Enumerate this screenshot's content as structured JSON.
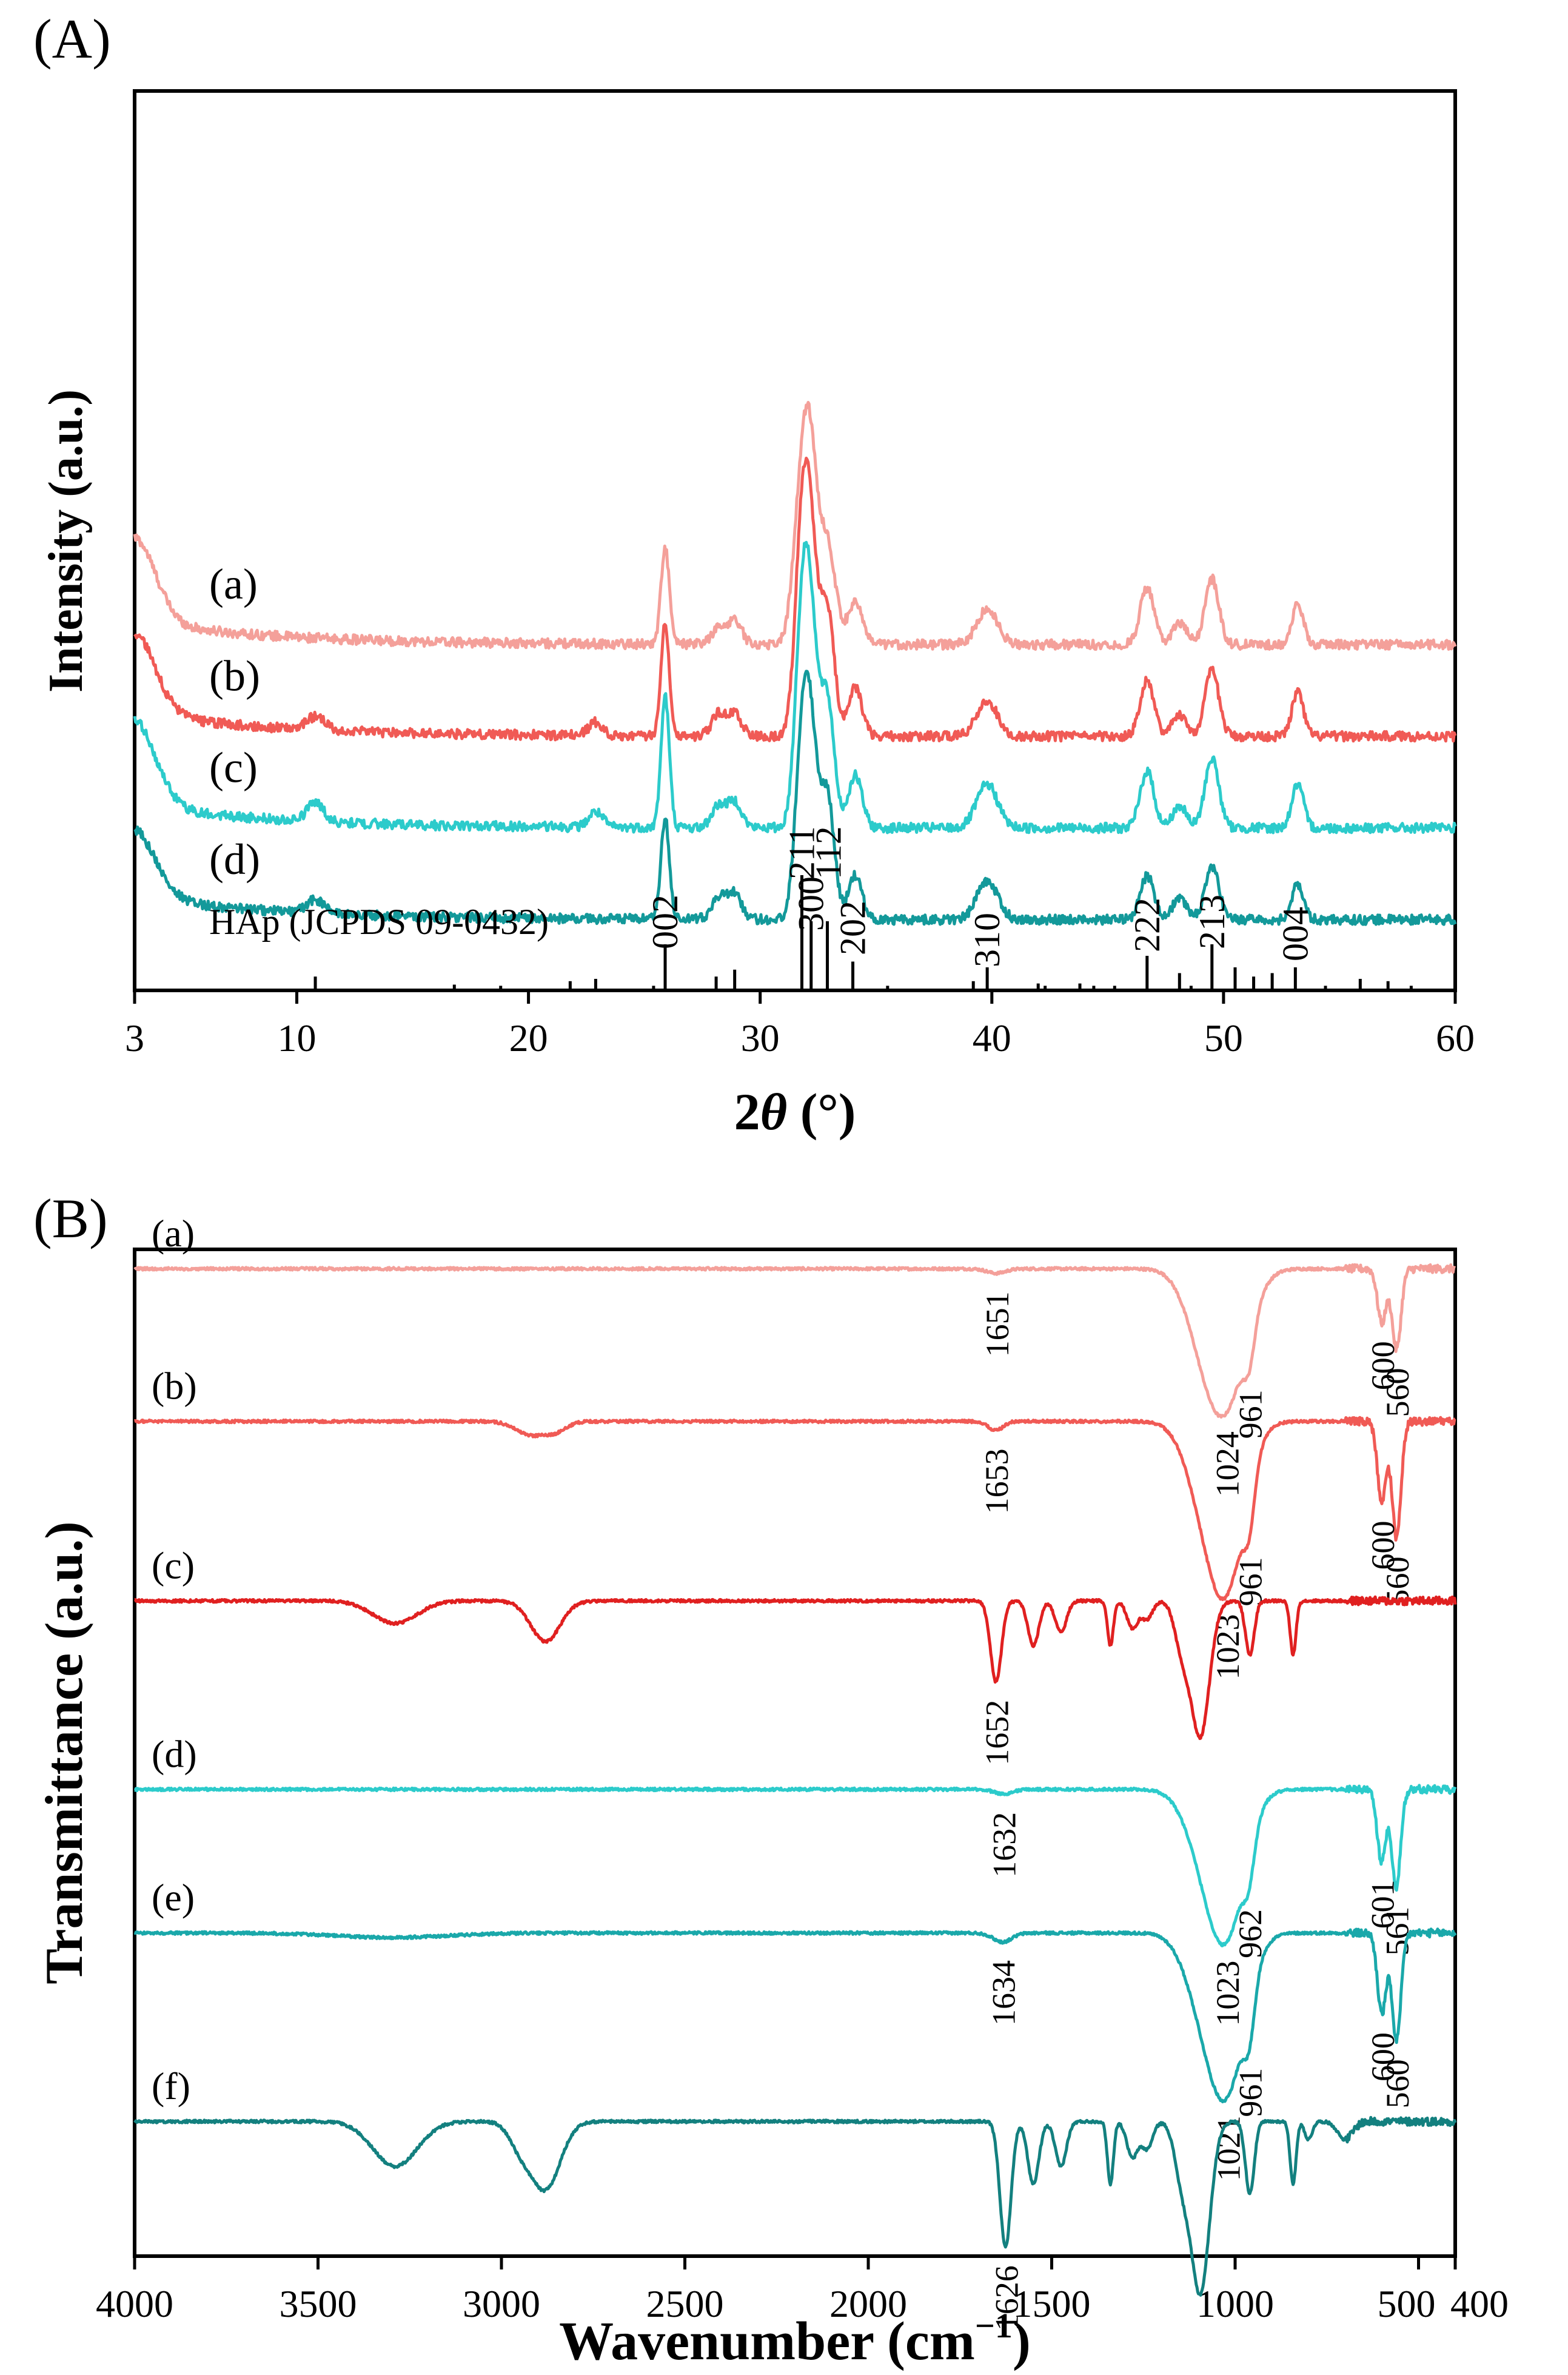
{
  "chart_data": [
    {
      "panel_label": "(A)",
      "type": "line",
      "xlabel": "2θ (°)",
      "xlabel_var": "2",
      "xlabel_italic": "θ",
      "xlabel_unit": " (°)",
      "ylabel": "Intensity (a.u.)",
      "xlim": [
        3,
        60
      ],
      "x_ticks": [
        3,
        10,
        20,
        30,
        40,
        50,
        60
      ],
      "x_tick_labels": [
        "3",
        "10",
        "20",
        "30",
        "40",
        "50",
        "60"
      ],
      "y_ticks": "none",
      "grid": false,
      "series": [
        {
          "name": "(a)",
          "color": "#f4a09a",
          "offset": 7.6,
          "peaks": [
            [
              3,
              1.9,
              0.9
            ],
            [
              25.9,
              2.2,
              0.18
            ],
            [
              28.2,
              0.35,
              0.3
            ],
            [
              28.9,
              0.55,
              0.3
            ],
            [
              31.8,
              3.5,
              0.35
            ],
            [
              32.2,
              3.0,
              0.3
            ],
            [
              32.9,
              2.3,
              0.35
            ],
            [
              34.1,
              1.0,
              0.3
            ],
            [
              39.8,
              0.8,
              0.45
            ],
            [
              46.7,
              1.3,
              0.3
            ],
            [
              48.1,
              0.5,
              0.3
            ],
            [
              49.5,
              1.5,
              0.3
            ],
            [
              53.2,
              0.9,
              0.25
            ]
          ]
        },
        {
          "name": "(b)",
          "color": "#f05a55",
          "offset": 5.5,
          "peaks": [
            [
              3,
              1.8,
              0.9
            ],
            [
              10.8,
              0.3,
              0.4
            ],
            [
              22.9,
              0.3,
              0.3
            ],
            [
              25.9,
              2.6,
              0.18
            ],
            [
              28.2,
              0.5,
              0.3
            ],
            [
              28.9,
              0.5,
              0.3
            ],
            [
              31.8,
              4.3,
              0.3
            ],
            [
              32.2,
              3.6,
              0.3
            ],
            [
              32.9,
              2.9,
              0.3
            ],
            [
              34.1,
              1.1,
              0.3
            ],
            [
              39.8,
              0.8,
              0.45
            ],
            [
              46.7,
              1.3,
              0.3
            ],
            [
              48.1,
              0.5,
              0.3
            ],
            [
              49.5,
              1.5,
              0.3
            ],
            [
              53.2,
              1.0,
              0.25
            ]
          ]
        },
        {
          "name": "(c)",
          "color": "#2ccbcb",
          "offset": 3.4,
          "peaks": [
            [
              3,
              1.9,
              0.9
            ],
            [
              10.8,
              0.45,
              0.35
            ],
            [
              22.9,
              0.35,
              0.3
            ],
            [
              25.9,
              3.0,
              0.18
            ],
            [
              28.2,
              0.5,
              0.3
            ],
            [
              28.9,
              0.6,
              0.3
            ],
            [
              31.8,
              4.3,
              0.3
            ],
            [
              32.2,
              3.8,
              0.3
            ],
            [
              32.9,
              2.9,
              0.3
            ],
            [
              34.1,
              1.2,
              0.3
            ],
            [
              39.8,
              1.0,
              0.45
            ],
            [
              46.7,
              1.3,
              0.3
            ],
            [
              48.1,
              0.5,
              0.3
            ],
            [
              49.5,
              1.6,
              0.3
            ],
            [
              53.2,
              1.0,
              0.25
            ]
          ]
        },
        {
          "name": "(d)",
          "color": "#13999a",
          "offset": 1.3,
          "peaks": [
            [
              3,
              1.5,
              0.9
            ],
            [
              10.8,
              0.3,
              0.4
            ],
            [
              25.9,
              2.3,
              0.18
            ],
            [
              28.2,
              0.5,
              0.3
            ],
            [
              28.9,
              0.6,
              0.3
            ],
            [
              31.8,
              3.6,
              0.3
            ],
            [
              32.2,
              3.5,
              0.3
            ],
            [
              32.9,
              2.8,
              0.3
            ],
            [
              34.1,
              1.0,
              0.3
            ],
            [
              39.8,
              0.9,
              0.45
            ],
            [
              46.7,
              1.0,
              0.3
            ],
            [
              48.1,
              0.5,
              0.3
            ],
            [
              49.5,
              1.2,
              0.3
            ],
            [
              53.2,
              0.8,
              0.25
            ]
          ]
        }
      ],
      "reference": {
        "name": "HAp (JCPDS 09-0432)",
        "lines": [
          {
            "x": 10.8,
            "h": 0.12
          },
          {
            "x": 16.8,
            "h": 0.05
          },
          {
            "x": 18.8,
            "h": 0.04
          },
          {
            "x": 21.8,
            "h": 0.08
          },
          {
            "x": 22.9,
            "h": 0.1
          },
          {
            "x": 25.4,
            "h": 0.04
          },
          {
            "x": 25.9,
            "h": 0.4,
            "label": "002"
          },
          {
            "x": 28.1,
            "h": 0.12
          },
          {
            "x": 28.9,
            "h": 0.18
          },
          {
            "x": 31.8,
            "h": 1.0,
            "label": "211"
          },
          {
            "x": 32.2,
            "h": 0.6,
            "label": "112"
          },
          {
            "x": 32.9,
            "h": 0.6,
            "label": "300"
          },
          {
            "x": 34.0,
            "h": 0.25,
            "label": "202"
          },
          {
            "x": 35.5,
            "h": 0.04
          },
          {
            "x": 39.2,
            "h": 0.08
          },
          {
            "x": 39.8,
            "h": 0.2,
            "label": "310"
          },
          {
            "x": 42.0,
            "h": 0.06
          },
          {
            "x": 42.3,
            "h": 0.04
          },
          {
            "x": 43.8,
            "h": 0.06
          },
          {
            "x": 44.4,
            "h": 0.04
          },
          {
            "x": 45.3,
            "h": 0.04
          },
          {
            "x": 46.7,
            "h": 0.3,
            "label": "222"
          },
          {
            "x": 48.1,
            "h": 0.15
          },
          {
            "x": 48.6,
            "h": 0.04
          },
          {
            "x": 49.5,
            "h": 0.4,
            "label": "213"
          },
          {
            "x": 50.5,
            "h": 0.2
          },
          {
            "x": 51.3,
            "h": 0.12
          },
          {
            "x": 52.1,
            "h": 0.15
          },
          {
            "x": 53.1,
            "h": 0.2,
            "label": "004"
          },
          {
            "x": 54.4,
            "h": 0.04
          },
          {
            "x": 55.9,
            "h": 0.1
          },
          {
            "x": 57.1,
            "h": 0.08
          },
          {
            "x": 58.1,
            "h": 0.04
          }
        ],
        "labels": [
          "002",
          "211",
          "112",
          "300",
          "202",
          "310",
          "222",
          "213",
          "004"
        ]
      }
    },
    {
      "panel_label": "(B)",
      "type": "line",
      "xlabel": "Wavenumber (cm−1)",
      "xlabel_main": "Wavenumber (cm",
      "xlabel_sup": "−1",
      "xlabel_close": ")",
      "ylabel": "Transmittance (a.u.)",
      "xlim": [
        4000,
        400
      ],
      "x_ticks": [
        4000,
        3500,
        3000,
        2500,
        2000,
        1500,
        1000,
        500,
        400
      ],
      "x_tick_labels": [
        "4000",
        "3500",
        "3000",
        "2500",
        "2000",
        "1500",
        "1000",
        "500",
        "400"
      ],
      "grid": false,
      "series": [
        {
          "name": "(a)",
          "color": "#f4a09a",
          "baseline": 11.0,
          "bands": [
            [
              1024,
              1.4,
              55
            ],
            [
              961,
              0.4,
              15
            ],
            [
              1090,
              0.5,
              50
            ],
            [
              600,
              0.6,
              12
            ],
            [
              560,
              0.9,
              12
            ],
            [
              1651,
              0.05,
              25
            ]
          ],
          "annotations": [
            {
              "x": 1651,
              "text": "1651"
            },
            {
              "x": 1024,
              "text": "1024"
            },
            {
              "x": 961,
              "text": "961"
            },
            {
              "x": 600,
              "text": "600"
            },
            {
              "x": 560,
              "text": "560"
            }
          ]
        },
        {
          "name": "(b)",
          "color": "#f05a55",
          "baseline": 9.3,
          "bands": [
            [
              1023,
              1.7,
              50
            ],
            [
              961,
              0.5,
              15
            ],
            [
              1090,
              0.6,
              50
            ],
            [
              600,
              0.9,
              12
            ],
            [
              560,
              1.3,
              12
            ],
            [
              1653,
              0.1,
              20
            ],
            [
              2920,
              0.15,
              40
            ],
            [
              2850,
              0.1,
              30
            ]
          ],
          "annotations": [
            {
              "x": 1653,
              "text": "1653"
            },
            {
              "x": 1023,
              "text": "1023"
            },
            {
              "x": 961,
              "text": "961"
            },
            {
              "x": 600,
              "text": "600"
            },
            {
              "x": 560,
              "text": "560"
            }
          ]
        },
        {
          "name": "(c)",
          "color": "#e02020",
          "baseline": 7.3,
          "bands": [
            [
              3290,
              0.25,
              60
            ],
            [
              2880,
              0.45,
              40
            ],
            [
              1652,
              0.9,
              15
            ],
            [
              1550,
              0.5,
              15
            ],
            [
              1475,
              0.35,
              15
            ],
            [
              1340,
              0.5,
              8
            ],
            [
              1280,
              0.3,
              15
            ],
            [
              1240,
              0.2,
              15
            ],
            [
              1145,
              0.5,
              20
            ],
            [
              1095,
              1.5,
              25
            ],
            [
              960,
              0.6,
              12
            ],
            [
              842,
              0.6,
              8
            ]
          ],
          "annotations": [
            {
              "x": 1652,
              "text": "1652"
            }
          ]
        },
        {
          "name": "(d)",
          "color": "#2ccbcb",
          "baseline": 5.2,
          "bands": [
            [
              1023,
              1.5,
              50
            ],
            [
              962,
              0.4,
              15
            ],
            [
              1090,
              0.5,
              50
            ],
            [
              601,
              0.8,
              12
            ],
            [
              561,
              1.1,
              12
            ],
            [
              1632,
              0.05,
              25
            ]
          ],
          "annotations": [
            {
              "x": 1632,
              "text": "1632"
            },
            {
              "x": 1023,
              "text": "1023"
            },
            {
              "x": 962,
              "text": "962"
            },
            {
              "x": 601,
              "text": "601"
            },
            {
              "x": 561,
              "text": "561"
            }
          ]
        },
        {
          "name": "(e)",
          "color": "#1aa8aa",
          "baseline": 3.6,
          "bands": [
            [
              1021,
              1.6,
              50
            ],
            [
              961,
              0.5,
              15
            ],
            [
              1090,
              0.6,
              50
            ],
            [
              600,
              0.9,
              12
            ],
            [
              560,
              1.2,
              12
            ],
            [
              1634,
              0.1,
              25
            ],
            [
              3300,
              0.05,
              150
            ]
          ],
          "annotations": [
            {
              "x": 1634,
              "text": "1634"
            },
            {
              "x": 1021,
              "text": "1021"
            },
            {
              "x": 961,
              "text": "961"
            },
            {
              "x": 600,
              "text": "600"
            },
            {
              "x": 560,
              "text": "560"
            }
          ]
        },
        {
          "name": "(f)",
          "color": "#13807f",
          "baseline": 1.5,
          "bands": [
            [
              3290,
              0.5,
              60
            ],
            [
              2880,
              0.75,
              40
            ],
            [
              2950,
              0.25,
              30
            ],
            [
              1626,
              1.4,
              15
            ],
            [
              1550,
              0.7,
              15
            ],
            [
              1475,
              0.5,
              15
            ],
            [
              1340,
              0.7,
              8
            ],
            [
              1280,
              0.4,
              15
            ],
            [
              1240,
              0.3,
              15
            ],
            [
              1145,
              0.6,
              20
            ],
            [
              1095,
              1.9,
              25
            ],
            [
              960,
              0.8,
              12
            ],
            [
              842,
              0.7,
              8
            ],
            [
              800,
              0.2,
              10
            ],
            [
              700,
              0.2,
              20
            ]
          ],
          "annotations": [
            {
              "x": 1626,
              "text": "1626"
            }
          ]
        }
      ]
    }
  ]
}
